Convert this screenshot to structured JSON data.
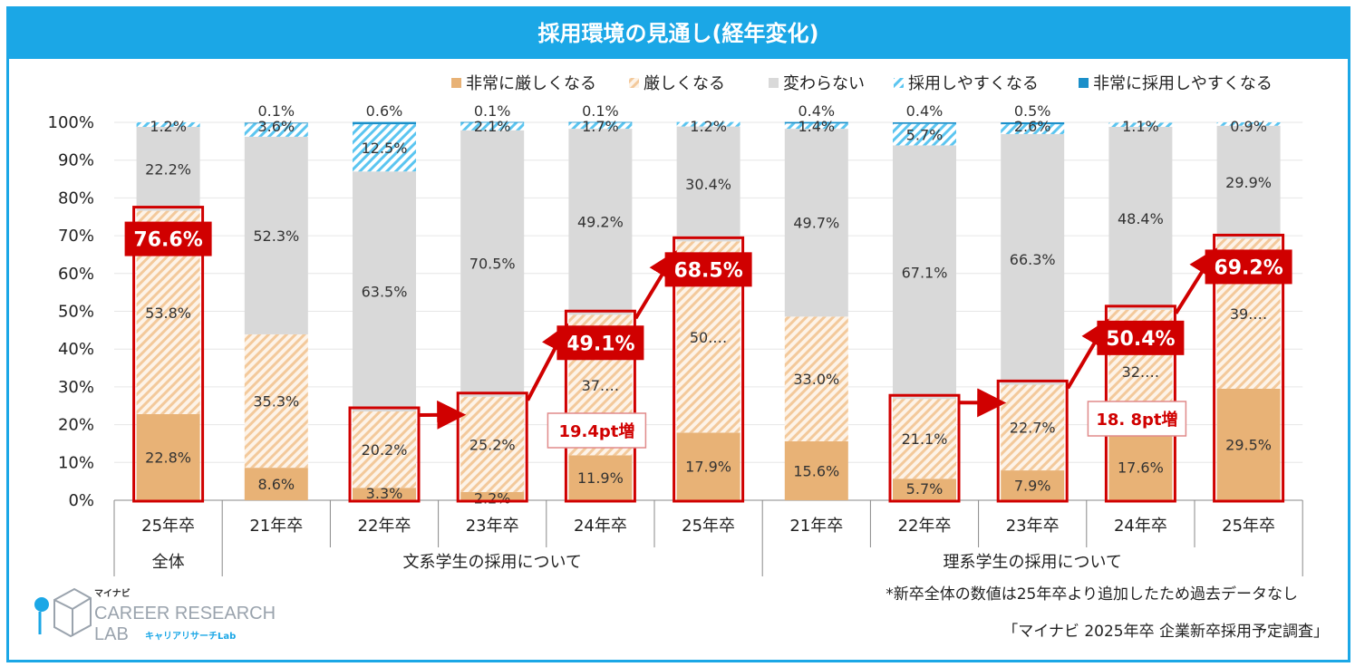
{
  "title": "採用環境の見通し(経年変化)",
  "colors": {
    "frame": "#1ba7e6",
    "very_severe": "#e8b276",
    "severe_stripe": "#f3c99b",
    "no_change": "#d9d9d9",
    "easier_stripe": "#5bc5f0",
    "very_easier": "#1b8fc9",
    "highlight": "#d00000"
  },
  "chart_data": {
    "type": "bar",
    "stacked": true,
    "ylim": [
      0,
      100
    ],
    "yticks": [
      "0%",
      "10%",
      "20%",
      "30%",
      "40%",
      "50%",
      "60%",
      "70%",
      "80%",
      "90%",
      "100%"
    ],
    "categories": [
      "25年卒",
      "21年卒",
      "22年卒",
      "23年卒",
      "24年卒",
      "25年卒",
      "21年卒",
      "22年卒",
      "23年卒",
      "24年卒",
      "25年卒"
    ],
    "groups": [
      {
        "label": "全体",
        "start": 0,
        "end": 0
      },
      {
        "label": "文系学生の採用について",
        "start": 1,
        "end": 5
      },
      {
        "label": "理系学生の採用について",
        "start": 6,
        "end": 10
      }
    ],
    "legend_position": "top-right",
    "series": [
      {
        "name": "非常に厳しくなる",
        "values": [
          22.8,
          8.6,
          3.3,
          2.2,
          11.9,
          17.9,
          15.6,
          5.7,
          7.9,
          17.6,
          29.5
        ],
        "labels": [
          "22.8%",
          "8.6%",
          "3.3%",
          "2.2%",
          "11.9%",
          "17.9%",
          "15.6%",
          "5.7%",
          "7.9%",
          "17.6%",
          "29.5%"
        ]
      },
      {
        "name": "厳しくなる",
        "values": [
          53.8,
          35.3,
          20.2,
          25.2,
          37.2,
          50.6,
          33.0,
          21.1,
          22.7,
          32.8,
          39.7
        ],
        "labels": [
          "53.8%",
          "35.3%",
          "20.2%",
          "25.2%",
          "37.…",
          "50.…",
          "33.0%",
          "21.1%",
          "22.7%",
          "32.…",
          "39.…"
        ]
      },
      {
        "name": "変わらない",
        "values": [
          22.2,
          52.3,
          63.5,
          70.5,
          49.2,
          30.4,
          49.7,
          67.1,
          66.3,
          48.4,
          29.9
        ],
        "labels": [
          "22.2%",
          "52.3%",
          "63.5%",
          "70.5%",
          "49.2%",
          "30.4%",
          "49.7%",
          "67.1%",
          "66.3%",
          "48.4%",
          "29.9%"
        ]
      },
      {
        "name": "採用しやすくなる",
        "values": [
          1.2,
          3.6,
          12.5,
          2.1,
          1.7,
          1.2,
          1.4,
          5.7,
          2.6,
          1.1,
          0.9
        ],
        "labels": [
          "1.2%",
          "3.6%",
          "12.5%",
          "2.1%",
          "1.7%",
          "1.2%",
          "1.4%",
          "5.7%",
          "2.6%",
          "1.1%",
          "0.9%"
        ]
      },
      {
        "name": "非常に採用しやすくなる",
        "values": [
          0.0,
          0.1,
          0.6,
          0.1,
          0.1,
          0.0,
          0.4,
          0.4,
          0.5,
          0.0,
          0.0
        ],
        "labels": [
          "",
          "0.1%",
          "0.6%",
          "0.1%",
          "0.1%",
          "",
          "0.4%",
          "0.4%",
          "0.5%",
          "",
          ""
        ]
      }
    ],
    "highlight_totals": [
      {
        "index": 0,
        "label": "76.6%",
        "value": 76.6
      },
      {
        "index": 2,
        "label": "",
        "value": 23.5
      },
      {
        "index": 3,
        "label": "",
        "value": 27.4
      },
      {
        "index": 4,
        "label": "49.1%",
        "value": 49.1
      },
      {
        "index": 5,
        "label": "68.5%",
        "value": 68.5
      },
      {
        "index": 7,
        "label": "",
        "value": 26.8
      },
      {
        "index": 8,
        "label": "",
        "value": 30.6
      },
      {
        "index": 9,
        "label": "50.4%",
        "value": 50.4
      },
      {
        "index": 10,
        "label": "69.2%",
        "value": 69.2
      }
    ],
    "trend_arrows": [
      {
        "from": 2,
        "to": 5
      },
      {
        "from": 7,
        "to": 10
      }
    ],
    "annotations": [
      {
        "text": "19.4pt増",
        "near_index": 4
      },
      {
        "text": "18. 8pt増",
        "near_index": 9
      }
    ]
  },
  "footnote": "*新卒全体の数値は25年卒より追加したため過去データなし",
  "source": "「マイナビ 2025年卒 企業新卒採用予定調査」",
  "logo": {
    "top": "マイナビ",
    "line1": "CAREER RESEARCH",
    "line2": "LAB",
    "sub": "キャリアリサーチLab"
  }
}
